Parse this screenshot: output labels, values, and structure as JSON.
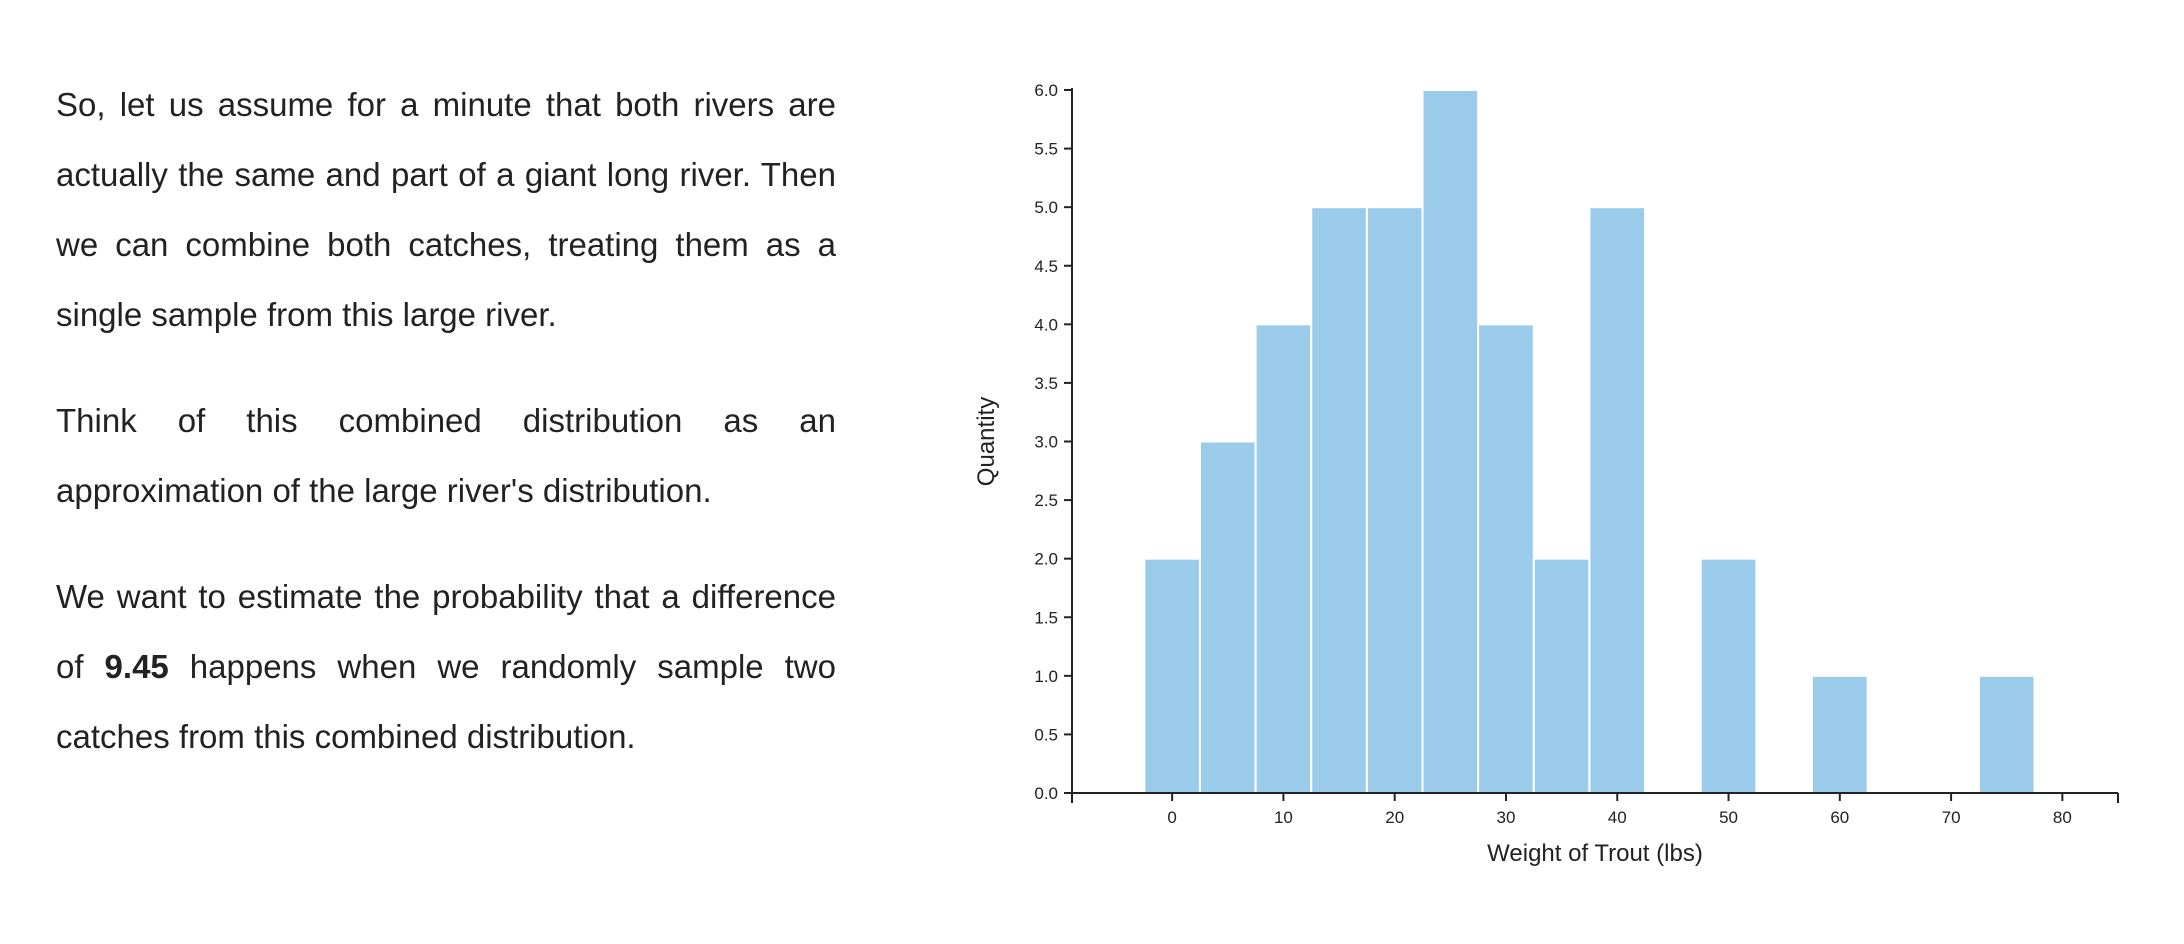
{
  "narrative": {
    "paragraph1": "So, let us assume for a minute that both rivers are actually the same and part of a giant long river. Then we can combine both catches, treating them as a single sample from this large river.",
    "paragraph2": "Think of this combined distribution as an approximation of the large river's distribution.",
    "paragraph3_before": "We want to estimate the probability that a difference of ",
    "paragraph3_value": "9.45",
    "paragraph3_after": " happens when we randomly sample two catches from this combined distribution."
  },
  "chart_data": {
    "type": "bar",
    "xlabel": "Weight of Trout (lbs)",
    "ylabel": "Quantity",
    "bin_width": 5,
    "bins": [
      {
        "x_start": -2.5,
        "x_end": 2.5,
        "count": 2
      },
      {
        "x_start": 2.5,
        "x_end": 7.5,
        "count": 3
      },
      {
        "x_start": 7.5,
        "x_end": 12.5,
        "count": 4
      },
      {
        "x_start": 12.5,
        "x_end": 17.5,
        "count": 5
      },
      {
        "x_start": 17.5,
        "x_end": 22.5,
        "count": 5
      },
      {
        "x_start": 22.5,
        "x_end": 27.5,
        "count": 6
      },
      {
        "x_start": 27.5,
        "x_end": 32.5,
        "count": 4
      },
      {
        "x_start": 32.5,
        "x_end": 37.5,
        "count": 2
      },
      {
        "x_start": 37.5,
        "x_end": 42.5,
        "count": 5
      },
      {
        "x_start": 47.5,
        "x_end": 52.5,
        "count": 2
      },
      {
        "x_start": 57.5,
        "x_end": 62.5,
        "count": 1
      },
      {
        "x_start": 72.5,
        "x_end": 77.5,
        "count": 1
      }
    ],
    "xlim": [
      -9,
      85
    ],
    "ylim": [
      0,
      6
    ],
    "x_ticks": [
      0,
      10,
      20,
      30,
      40,
      50,
      60,
      70,
      80
    ],
    "y_ticks": [
      "0.0",
      "0.5",
      "1.0",
      "1.5",
      "2.0",
      "2.5",
      "3.0",
      "3.5",
      "4.0",
      "4.5",
      "5.0",
      "5.5",
      "6.0"
    ],
    "grid": false,
    "legend": "none",
    "colors": {
      "bar": "#9bcbeb",
      "bar_edge": "#ffffff",
      "axis": "#222222"
    }
  }
}
